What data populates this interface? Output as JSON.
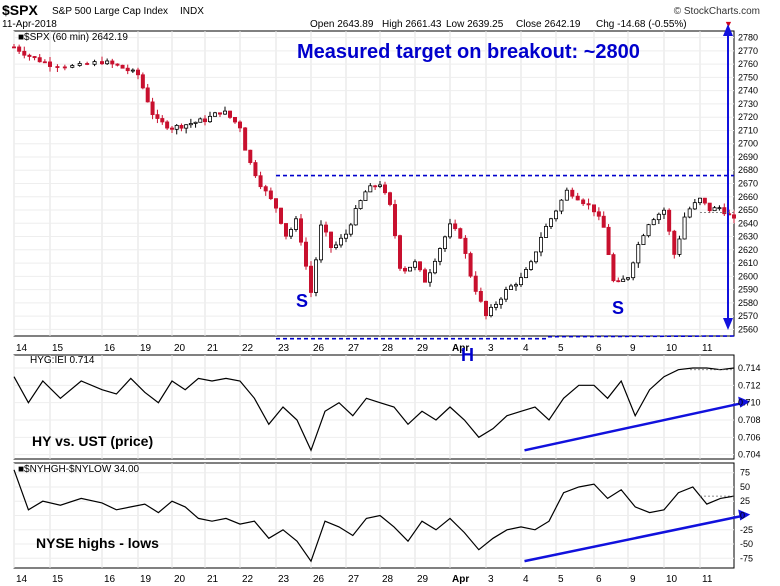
{
  "header": {
    "symbol": "$SPX",
    "name": "S&P 500 Large Cap Index",
    "exchange": "INDX",
    "date": "11-Apr-2018",
    "open": "Open 2643.89",
    "high": "High 2661.43",
    "low": "Low 2639.25",
    "close": "Close 2642.19",
    "chg": "Chg -14.68 (-0.55%)",
    "chg_arrow": "▼",
    "brand": "© StockCharts.com"
  },
  "panels": {
    "price": {
      "legend": "■$SPX (60 min) 2642.19",
      "ylim": [
        2555,
        2785
      ],
      "ticks": [
        2560,
        2570,
        2580,
        2590,
        2600,
        2610,
        2620,
        2630,
        2640,
        2650,
        2660,
        2670,
        2680,
        2690,
        2700,
        2710,
        2720,
        2730,
        2740,
        2750,
        2760,
        2770,
        2780
      ],
      "annotations": {
        "target": "Measured target on breakout: ~2800",
        "left_shoulder": "S",
        "head": "H",
        "right_shoulder": "S"
      },
      "neckline": 2676,
      "base_low": 2553,
      "base_high": 2555
    },
    "hyg": {
      "legend": "HYG:IEI 0.714",
      "label": "HY vs. UST (price)",
      "ylim": [
        0.7035,
        0.7155
      ],
      "ticks": [
        "0.714",
        "0.712",
        "0.710",
        "0.708",
        "0.706",
        "0.704"
      ],
      "tick_values": [
        0.714,
        0.712,
        0.71,
        0.708,
        0.706,
        0.704
      ]
    },
    "nyse": {
      "legend": "■$NYHGH-$NYLOW 34.00",
      "label": "NYSE highs - lows",
      "ylim": [
        -92,
        92
      ],
      "ticks": [
        "75",
        "50",
        "25",
        "0",
        "-25",
        "-50",
        "-75"
      ],
      "tick_values": [
        75,
        50,
        25,
        0,
        -25,
        -50,
        -75
      ]
    }
  },
  "x_labels": [
    "14",
    "15",
    "16",
    "19",
    "20",
    "21",
    "22",
    "23",
    "26",
    "27",
    "28",
    "29",
    "Apr",
    "3",
    "4",
    "5",
    "6",
    "9",
    "10",
    "11"
  ],
  "chart_data": [
    {
      "type": "candlestick",
      "title": "$SPX (60 min) 2642.19",
      "ylabel": "Price",
      "ylim": [
        2555,
        2785
      ],
      "sessions": [
        "14",
        "15",
        "16",
        "19",
        "20",
        "21",
        "22",
        "23",
        "26",
        "27",
        "28",
        "29",
        "Apr",
        "3",
        "4",
        "5",
        "6",
        "9",
        "10",
        "11"
      ],
      "close_path": [
        [
          0,
          2773
        ],
        [
          0.5,
          2765
        ],
        [
          1,
          2760
        ],
        [
          1.5,
          2758
        ],
        [
          2,
          2762
        ],
        [
          2.5,
          2758
        ],
        [
          3,
          2752
        ],
        [
          3.5,
          2718
        ],
        [
          4,
          2712
        ],
        [
          4.5,
          2715
        ],
        [
          5,
          2718
        ],
        [
          5.5,
          2725
        ],
        [
          6,
          2713
        ],
        [
          6.2,
          2690
        ],
        [
          6.6,
          2668
        ],
        [
          7,
          2652
        ],
        [
          7.3,
          2630
        ],
        [
          7.6,
          2643
        ],
        [
          8,
          2588
        ],
        [
          8.3,
          2640
        ],
        [
          8.6,
          2620
        ],
        [
          9,
          2632
        ],
        [
          9.3,
          2650
        ],
        [
          9.6,
          2665
        ],
        [
          10,
          2670
        ],
        [
          10.3,
          2652
        ],
        [
          10.6,
          2603
        ],
        [
          11,
          2610
        ],
        [
          11.3,
          2596
        ],
        [
          11.6,
          2615
        ],
        [
          12,
          2638
        ],
        [
          12.3,
          2630
        ],
        [
          12.6,
          2598
        ],
        [
          13,
          2570
        ],
        [
          13.3,
          2580
        ],
        [
          13.6,
          2590
        ],
        [
          14,
          2598
        ],
        [
          14.3,
          2610
        ],
        [
          14.6,
          2632
        ],
        [
          15,
          2650
        ],
        [
          15.3,
          2665
        ],
        [
          15.6,
          2659
        ],
        [
          16,
          2650
        ],
        [
          16.3,
          2636
        ],
        [
          16.6,
          2592
        ],
        [
          17,
          2600
        ],
        [
          17.3,
          2625
        ],
        [
          17.6,
          2642
        ],
        [
          18,
          2650
        ],
        [
          18.3,
          2615
        ],
        [
          18.6,
          2648
        ],
        [
          19,
          2658
        ],
        [
          19.3,
          2650
        ],
        [
          19.6,
          2652
        ],
        [
          20,
          2642
        ]
      ],
      "open": 2643.89,
      "high": 2661.43,
      "low": 2639.25,
      "close": 2642.19
    },
    {
      "type": "line",
      "title": "HYG:IEI 0.714",
      "ylabel": "HY vs. UST (price)",
      "ylim": [
        0.7035,
        0.7155
      ],
      "x": [
        0,
        0.4,
        0.8,
        1.2,
        1.6,
        2,
        2.4,
        2.8,
        3.2,
        3.6,
        4,
        4.4,
        4.8,
        5.2,
        5.6,
        6,
        6.4,
        6.8,
        7.2,
        7.6,
        8,
        8.4,
        8.8,
        9.2,
        9.6,
        10,
        10.4,
        10.8,
        11.2,
        11.6,
        12,
        12.4,
        12.8,
        13.2,
        13.6,
        14,
        14.4,
        14.8,
        15.2,
        15.6,
        16,
        16.4,
        16.8,
        17.2,
        17.6,
        18,
        18.4,
        18.8,
        19.2,
        19.6,
        20
      ],
      "values": [
        0.713,
        0.71,
        0.7125,
        0.7105,
        0.7125,
        0.7115,
        0.711,
        0.7128,
        0.7112,
        0.71,
        0.7125,
        0.7115,
        0.7128,
        0.7125,
        0.7128,
        0.7125,
        0.7105,
        0.7075,
        0.7095,
        0.708,
        0.7045,
        0.709,
        0.71,
        0.7085,
        0.7105,
        0.71,
        0.7095,
        0.7075,
        0.709,
        0.708,
        0.7095,
        0.708,
        0.706,
        0.707,
        0.7085,
        0.709,
        0.7095,
        0.708,
        0.7105,
        0.712,
        0.712,
        0.7105,
        0.7125,
        0.7085,
        0.7115,
        0.713,
        0.7138,
        0.714,
        0.714,
        0.7138,
        0.714
      ],
      "trendline": {
        "from": [
          14.1,
          0.7045
        ],
        "to": [
          20.3,
          0.71
        ]
      }
    },
    {
      "type": "line",
      "title": "$NYHGH-$NYLOW 34.00",
      "ylabel": "NYSE highs - lows",
      "ylim": [
        -92,
        92
      ],
      "x": [
        0,
        0.4,
        0.8,
        1.2,
        1.6,
        2,
        2.4,
        2.8,
        3.2,
        3.6,
        4,
        4.4,
        4.8,
        5.2,
        5.6,
        6,
        6.4,
        6.8,
        7.2,
        7.6,
        8,
        8.4,
        8.8,
        9.2,
        9.6,
        10,
        10.4,
        10.8,
        11.2,
        11.6,
        12,
        12.4,
        12.8,
        13.2,
        13.6,
        14,
        14.4,
        14.8,
        15.2,
        15.6,
        16,
        16.4,
        16.8,
        17.2,
        17.6,
        18,
        18.4,
        18.8,
        19.2,
        19.6,
        20
      ],
      "values": [
        80,
        10,
        25,
        18,
        30,
        22,
        10,
        15,
        20,
        5,
        25,
        15,
        -5,
        -10,
        -5,
        -15,
        -10,
        -40,
        -25,
        -45,
        -80,
        -10,
        -20,
        -35,
        -5,
        0,
        -20,
        -45,
        -10,
        -25,
        -5,
        -30,
        -60,
        -40,
        -25,
        -20,
        -25,
        -10,
        40,
        50,
        55,
        30,
        45,
        15,
        5,
        10,
        40,
        50,
        20,
        30,
        34
      ],
      "trendline": {
        "from": [
          14.1,
          -80
        ],
        "to": [
          20.3,
          0
        ]
      }
    }
  ]
}
